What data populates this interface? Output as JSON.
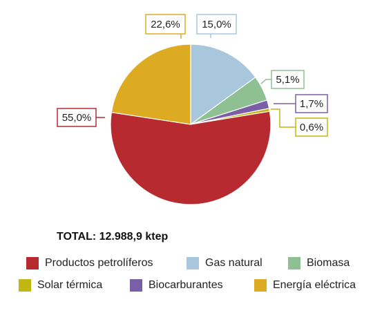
{
  "chart_data": {
    "type": "pie",
    "title": "",
    "slices": [
      {
        "name": "Gas natural",
        "value": 15.0,
        "label": "15,0%",
        "color": "#a9c7dc",
        "outline": "#a9c7dc"
      },
      {
        "name": "Biomasa",
        "value": 5.1,
        "label": "5,1%",
        "color": "#8fc093",
        "outline": "#8fc093"
      },
      {
        "name": "Biocarburantes",
        "value": 1.7,
        "label": "1,7%",
        "color": "#7b5fa6",
        "outline": "#7b5fa6"
      },
      {
        "name": "Solar térmica",
        "value": 0.6,
        "label": "0,6%",
        "color": "#c2b613",
        "outline": "#c2b613"
      },
      {
        "name": "Productos petrolíferos",
        "value": 55.0,
        "label": "55,0%",
        "color": "#b72a2f",
        "outline": "#b72a2f"
      },
      {
        "name": "Energía eléctrica",
        "value": 22.6,
        "label": "22,6%",
        "color": "#ddab22",
        "outline": "#ddab22"
      }
    ]
  },
  "total_text": "TOTAL: 12.988,9 ktep",
  "legend": [
    {
      "label": "Productos petrolíferos",
      "color": "#b72a2f"
    },
    {
      "label": "Gas natural",
      "color": "#a9c7dc"
    },
    {
      "label": "Biomasa",
      "color": "#8fc093"
    },
    {
      "label": "Solar térmica",
      "color": "#c2b613"
    },
    {
      "label": "Biocarburantes",
      "color": "#7b5fa6"
    },
    {
      "label": "Energía eléctrica",
      "color": "#ddab22"
    }
  ]
}
